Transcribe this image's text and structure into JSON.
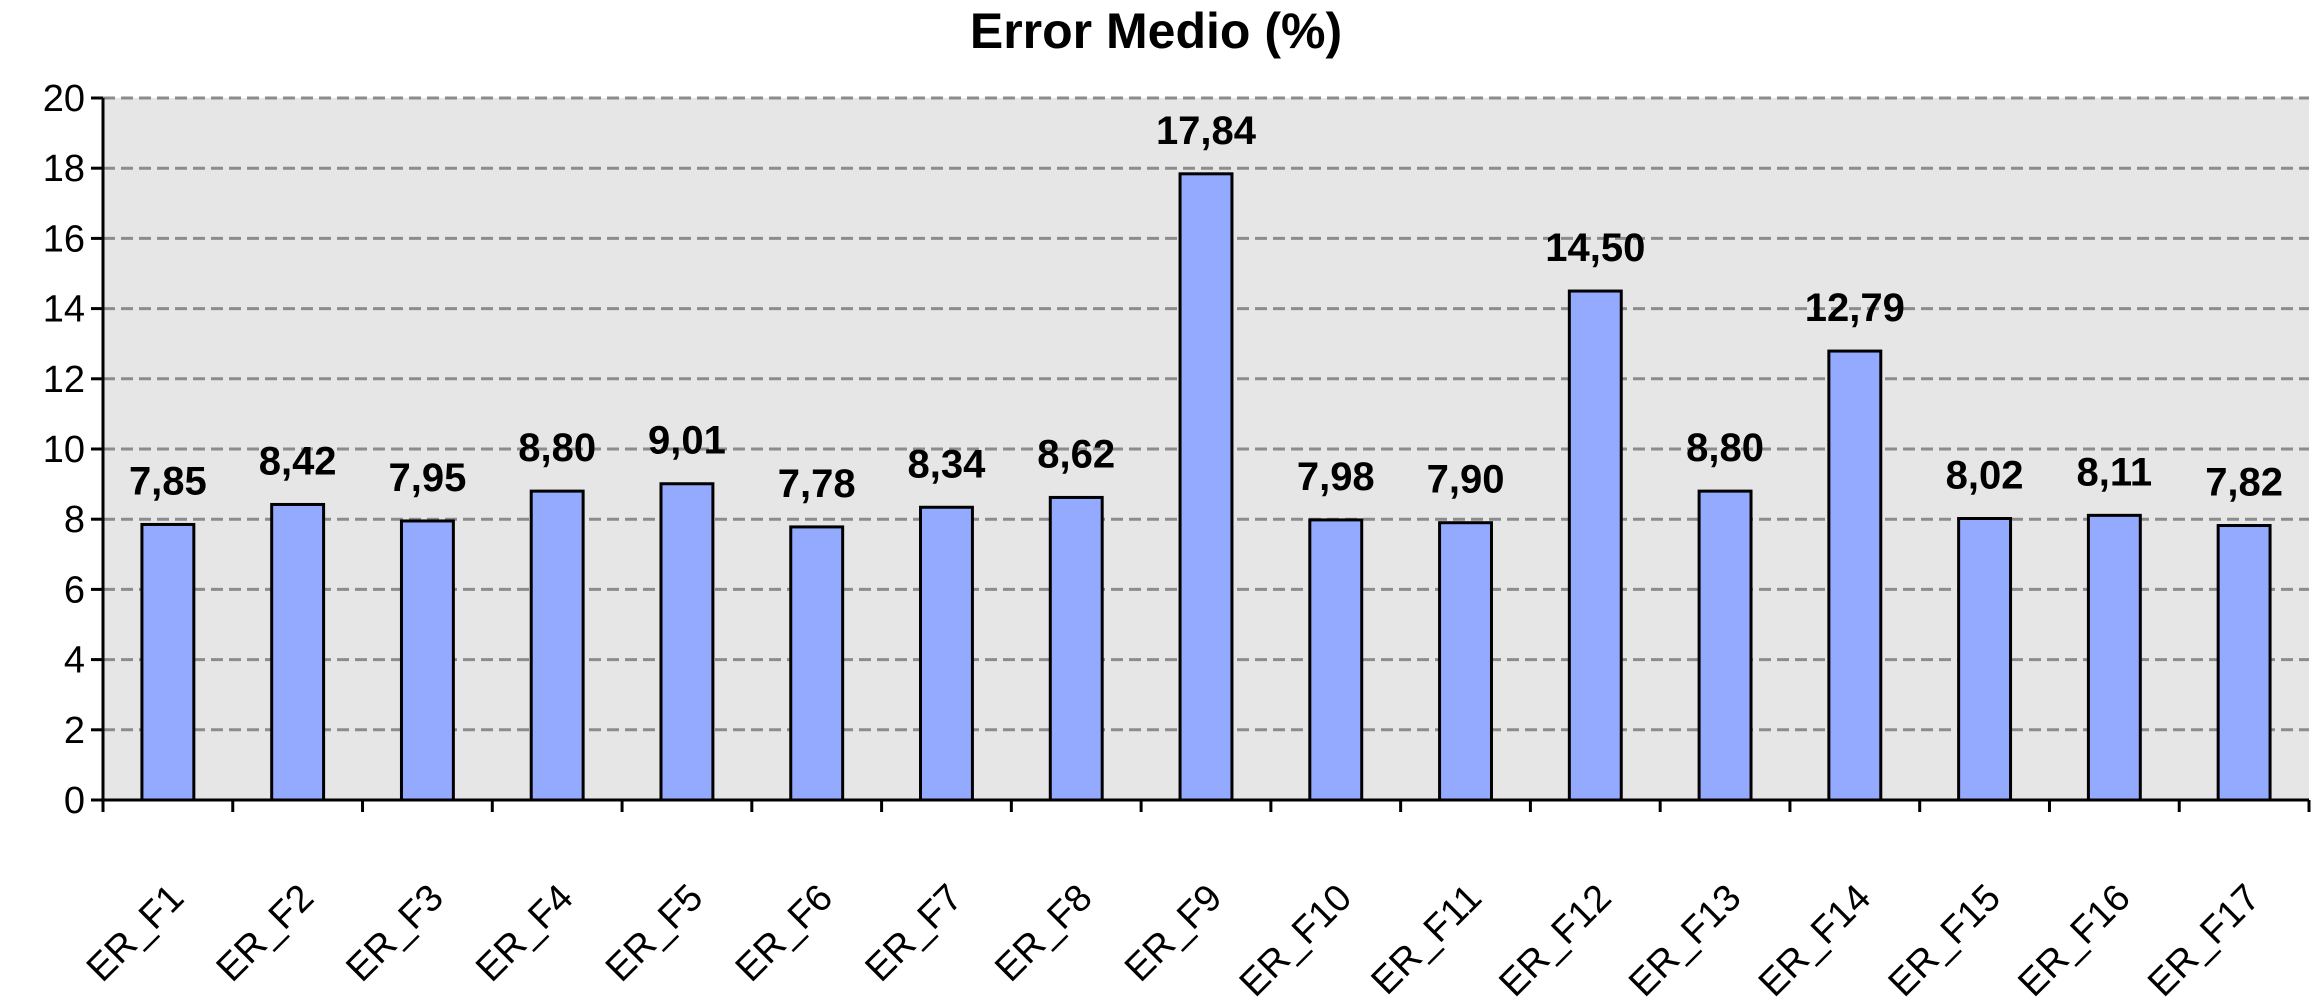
{
  "chart_data": {
    "type": "bar",
    "title": "Error Medio (%)",
    "xlabel": "",
    "ylabel": "",
    "ylim": [
      0,
      20
    ],
    "yticks": [
      0,
      2,
      4,
      6,
      8,
      10,
      12,
      14,
      16,
      18,
      20
    ],
    "ytick_labels": [
      "0",
      "2",
      "4",
      "6",
      "8",
      "10",
      "12",
      "14",
      "16",
      "18",
      "20"
    ],
    "grid": true,
    "legend": "none",
    "categories": [
      "ER_F1",
      "ER_F2",
      "ER_F3",
      "ER_F4",
      "ER_F5",
      "ER_F6",
      "ER_F7",
      "ER_F8",
      "ER_F9",
      "ER_F10",
      "ER_F11",
      "ER_F12",
      "ER_F13",
      "ER_F14",
      "ER_F15",
      "ER_F16",
      "ER_F17"
    ],
    "values": [
      7.85,
      8.42,
      7.95,
      8.8,
      9.01,
      7.78,
      8.34,
      8.62,
      17.84,
      7.98,
      7.9,
      14.5,
      8.8,
      12.79,
      8.02,
      8.11,
      7.82
    ],
    "data_labels": [
      "7,85",
      "8,42",
      "7,95",
      "8,80",
      "9,01",
      "7,78",
      "8,34",
      "8,62",
      "17,84",
      "7,98",
      "7,90",
      "14,50",
      "8,80",
      "12,79",
      "8,02",
      "8,11",
      "7,82"
    ],
    "colors": {
      "bar_fill": "#94aaff",
      "bar_stroke": "#000000",
      "plot_background": "#e6e6e6",
      "grid": "#8c8c8c"
    }
  }
}
